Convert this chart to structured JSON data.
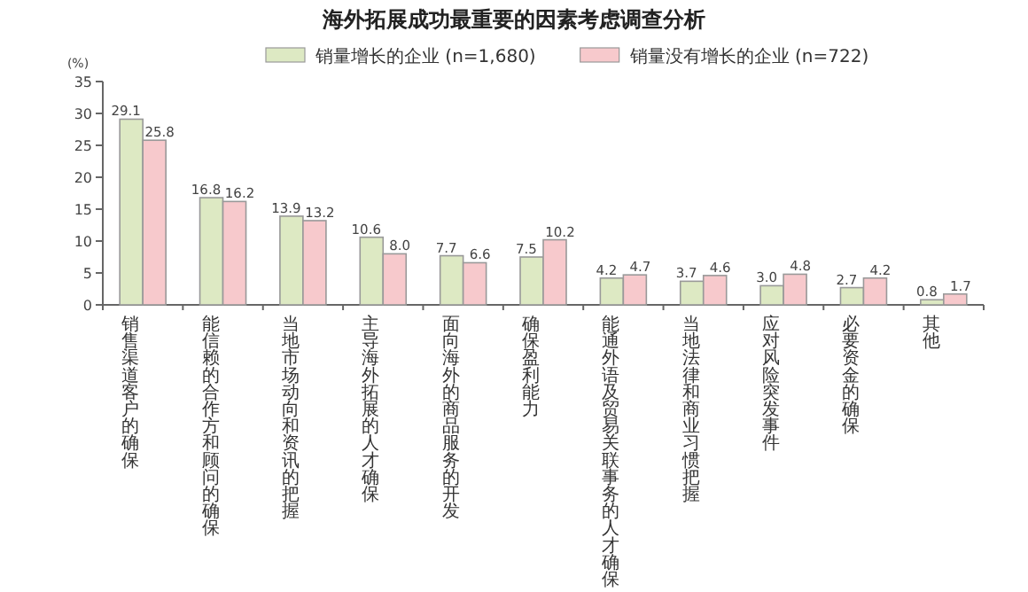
{
  "chart_data": {
    "type": "bar",
    "title": "海外拓展成功最重要的因素考虑调查分析",
    "ylabel": "(%)",
    "categories": [
      "销售渠道客户的确保",
      "能信赖的合作方和顾问的确保",
      "当地市场动向和资讯的把握",
      "主导海外拓展的人才确保",
      "面向海外的商品服务的开发",
      "确保盈利能力",
      "能通外语及贸易关联事务的人才确保",
      "当地法律和商业习惯把握",
      "应对风险突发事件",
      "必要资金的确保",
      "其他"
    ],
    "series": [
      {
        "name": "销量增长的企业 (n=1,680)",
        "color": "#dde9c3",
        "values": [
          29.1,
          16.8,
          13.9,
          10.6,
          7.7,
          7.5,
          4.2,
          3.7,
          3.0,
          2.7,
          0.8
        ],
        "value_labels": [
          "29.1",
          "16.8",
          "13.9",
          "10.6",
          "7.7",
          "7.5",
          "4.2",
          "3.7",
          "3.0",
          "2.7",
          "0.8"
        ]
      },
      {
        "name": "销量没有增长的企业 (n=722)",
        "color": "#f7c9cc",
        "values": [
          25.8,
          16.2,
          13.2,
          8.0,
          6.6,
          10.2,
          4.7,
          4.6,
          4.8,
          4.2,
          1.7
        ],
        "value_labels": [
          "25.8",
          "16.2",
          "13.2",
          "8.0",
          "6.6",
          "10.2",
          "4.7",
          "4.6",
          "4.8",
          "4.2",
          "1.7"
        ]
      }
    ],
    "ylim": [
      0,
      35
    ],
    "yticks": [
      0,
      5,
      10,
      15,
      20,
      25,
      30,
      35
    ],
    "legend": "top",
    "grid": false
  }
}
